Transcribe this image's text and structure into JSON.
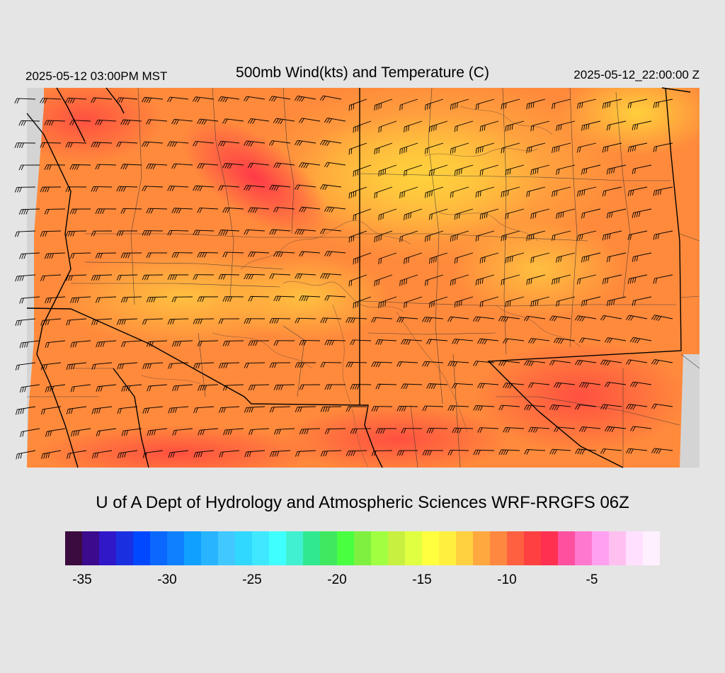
{
  "header": {
    "local_time": "2025-05-12 03:00PM MST",
    "title": "500mb Wind(kts) and Temperature (C)",
    "utc_time": "2025-05-12_22:00:00 Z"
  },
  "footer": {
    "credit": "U of A Dept of Hydrology and Atmospheric Sciences WRF-RRGFS 06Z"
  },
  "colorbar": {
    "colors": [
      "#3b0a3f",
      "#3c0a8c",
      "#3017c8",
      "#1a2fe0",
      "#0048ff",
      "#0a68ff",
      "#0f80ff",
      "#10a0ff",
      "#28b4ff",
      "#40c8ff",
      "#30d8ff",
      "#40e8ff",
      "#40ffff",
      "#40f0d0",
      "#30e890",
      "#40e860",
      "#48ff40",
      "#80f040",
      "#a0ff40",
      "#c8f040",
      "#e0ff40",
      "#ffff40",
      "#fff040",
      "#ffd040",
      "#ffa840",
      "#ff8840",
      "#ff6040",
      "#ff4040",
      "#ff3050",
      "#ff50a0",
      "#ff78d0",
      "#ffa0f0",
      "#ffc0f0",
      "#ffe0ff",
      "#fff0ff"
    ],
    "tick_labels": [
      "-35",
      "-30",
      "-25",
      "-20",
      "-15",
      "-10",
      "-5"
    ],
    "tick_values": [
      -35,
      -30,
      -25,
      -20,
      -15,
      -10,
      -5
    ],
    "range": [
      -36,
      -1
    ]
  }
}
